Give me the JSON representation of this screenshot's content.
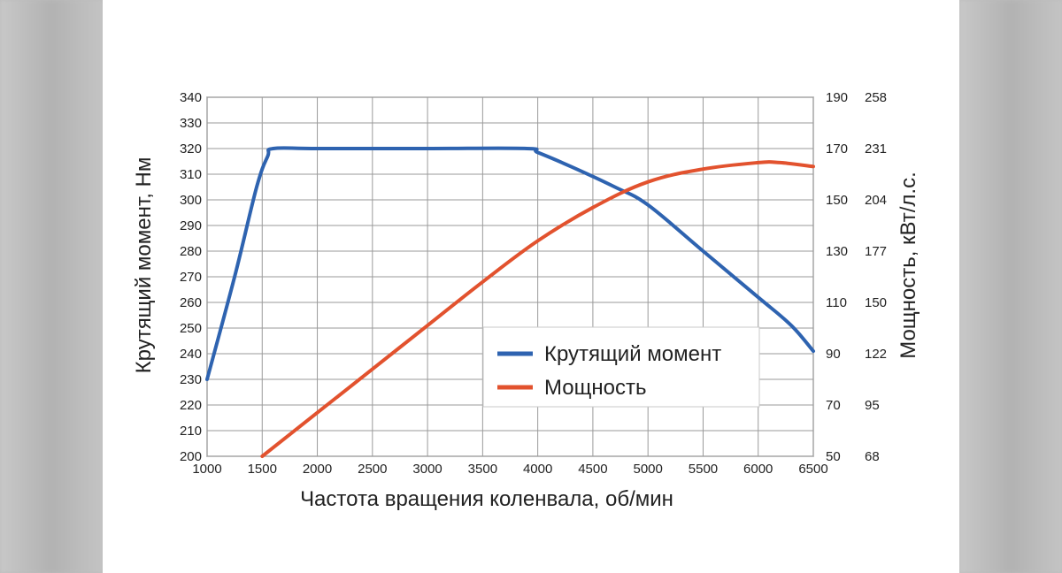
{
  "chart_data": {
    "type": "line",
    "xlabel": "Частота вращения коленвала, об/мин",
    "ylabel_left": "Крутящий момент, Нм",
    "ylabel_right": "Мощность, кВт/л.с.",
    "xlim": [
      1000,
      6500
    ],
    "x_ticks": [
      "1000",
      "1500",
      "2000",
      "2500",
      "3000",
      "3500",
      "4000",
      "4500",
      "5000",
      "5500",
      "6000",
      "6500"
    ],
    "ylim_left": [
      200,
      340
    ],
    "y_left_ticks": [
      "200",
      "210",
      "220",
      "230",
      "240",
      "250",
      "260",
      "270",
      "280",
      "290",
      "300",
      "310",
      "320",
      "330",
      "340"
    ],
    "ylim_right_kw": [
      50,
      190
    ],
    "y_right_kw_ticks": [
      "50",
      "70",
      "90",
      "110",
      "130",
      "150",
      "170",
      "190"
    ],
    "y_right_hp_ticks": [
      "68",
      "95",
      "122",
      "150",
      "177",
      "204",
      "231",
      "258"
    ],
    "grid": true,
    "legend_position": "lower-right",
    "series": [
      {
        "name": "Крутящий момент",
        "color": "#2e63b0",
        "axis": "left",
        "x": [
          1000,
          1250,
          1450,
          1550,
          1600,
          2000,
          3000,
          3900,
          4000,
          4300,
          4700,
          5000,
          5500,
          6000,
          6300,
          6500
        ],
        "y": [
          230,
          270,
          305,
          317,
          320,
          320,
          320,
          320,
          318.5,
          313,
          305,
          298,
          280,
          262,
          251,
          241
        ]
      },
      {
        "name": "Мощность",
        "color": "#e2522e",
        "axis": "right",
        "x": [
          1500,
          2000,
          2500,
          3000,
          3500,
          4000,
          4500,
          5000,
          5500,
          6000,
          6200,
          6500
        ],
        "y": [
          50,
          67,
          84,
          101,
          118,
          134,
          147,
          157,
          162,
          164.5,
          164.5,
          163
        ]
      }
    ]
  }
}
